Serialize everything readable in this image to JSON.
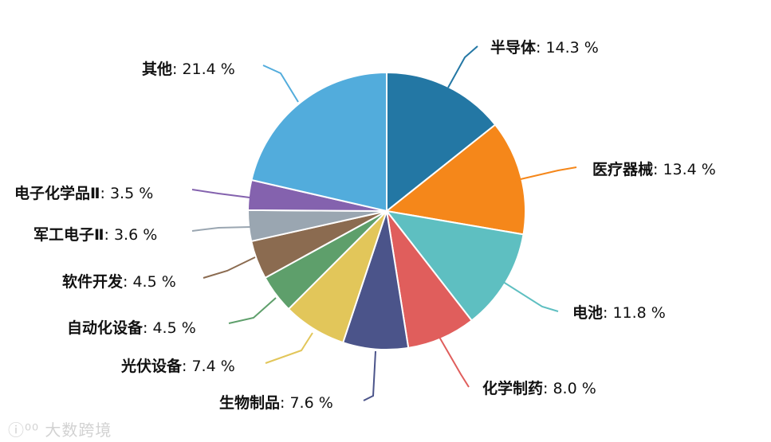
{
  "chart_data": {
    "type": "pie",
    "title": "",
    "legend": "none",
    "slices": [
      {
        "name": "半导体",
        "value": 14.3,
        "label_value": "14.3 %",
        "color": "#2377a4"
      },
      {
        "name": "医疗器械",
        "value": 13.4,
        "label_value": "13.4 %",
        "color": "#f5871a"
      },
      {
        "name": "电池",
        "value": 11.8,
        "label_value": "11.8 %",
        "color": "#5ebfc1"
      },
      {
        "name": "化学制药",
        "value": 8.0,
        "label_value": "8.0 %",
        "color": "#e05e5c"
      },
      {
        "name": "生物制品",
        "value": 7.6,
        "label_value": "7.6 %",
        "color": "#4b548a"
      },
      {
        "name": "光伏设备",
        "value": 7.4,
        "label_value": "7.4 %",
        "color": "#e2c65a"
      },
      {
        "name": "自动化设备",
        "value": 4.5,
        "label_value": "4.5 %",
        "color": "#5e9f6b"
      },
      {
        "name": "软件开发",
        "value": 4.5,
        "label_value": "4.5 %",
        "color": "#8b6b50"
      },
      {
        "name": "军工电子Ⅱ",
        "value": 3.6,
        "label_value": "3.6 %",
        "color": "#9aa6b1"
      },
      {
        "name": "电子化学品Ⅱ",
        "value": 3.5,
        "label_value": "3.5 %",
        "color": "#8462ae"
      },
      {
        "name": "其他",
        "value": 21.4,
        "label_value": "21.4 %",
        "color": "#52acdc"
      }
    ]
  },
  "watermark": "大数跨境"
}
